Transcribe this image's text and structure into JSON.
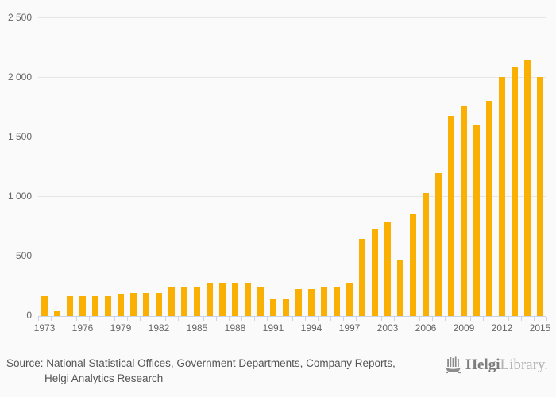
{
  "chart_data": {
    "type": "bar",
    "title": "",
    "categories": [
      "1973",
      "1974",
      "1975",
      "1976",
      "1977",
      "1978",
      "1979",
      "1980",
      "1981",
      "1982",
      "1983",
      "1984",
      "1985",
      "1986",
      "1987",
      "1988",
      "1989",
      "1990",
      "1991",
      "1992",
      "1993",
      "1994",
      "1995",
      "1996",
      "1997",
      "2001",
      "2002",
      "2003",
      "2004",
      "2005",
      "2006",
      "2007",
      "2008",
      "2009",
      "2010",
      "2011",
      "2012",
      "2013",
      "2014",
      "2015"
    ],
    "values": [
      170,
      40,
      170,
      170,
      170,
      170,
      185,
      195,
      195,
      195,
      245,
      245,
      245,
      280,
      275,
      280,
      280,
      250,
      150,
      150,
      230,
      225,
      240,
      240,
      275,
      645,
      735,
      795,
      470,
      860,
      1035,
      1200,
      1680,
      1770,
      1610,
      1810,
      2010,
      2090,
      2145,
      2010
    ],
    "xlabel": "",
    "ylabel": "",
    "ylim": [
      0,
      2500
    ],
    "y_ticks": [
      0,
      500,
      1000,
      1500,
      2000,
      2500
    ],
    "y_tick_labels": [
      "0",
      "500",
      "1 000",
      "1 500",
      "2 000",
      "2 500"
    ],
    "x_tick_label_slots": [
      0,
      3,
      6,
      9,
      12,
      15,
      18,
      21,
      24,
      27,
      30,
      33,
      36,
      39
    ],
    "x_tick_labels": [
      "1973",
      "1976",
      "1979",
      "1982",
      "1985",
      "1988",
      "1991",
      "1994",
      "1997",
      "2003",
      "2006",
      "2009",
      "2012",
      "2015"
    ],
    "grid": true,
    "legend": "none",
    "bar_color": "#f9b002"
  },
  "footer": {
    "source_line1": "Source: National Statistical Offices, Government Departments, Company Reports,",
    "source_line2": "Helgi Analytics Research"
  },
  "logo": {
    "icon": "viking-ship-icon",
    "brand_bold": "Helgi",
    "brand_light": "Library."
  },
  "colors": {
    "background": "#fafafa",
    "bar": "#f9b002",
    "gridline": "#e6e6e6",
    "axis": "#c9d4eb",
    "axis_label": "#666666",
    "source_text": "#555555",
    "logo_dark": "#7d7d7d",
    "logo_light": "#b3b3b3"
  }
}
